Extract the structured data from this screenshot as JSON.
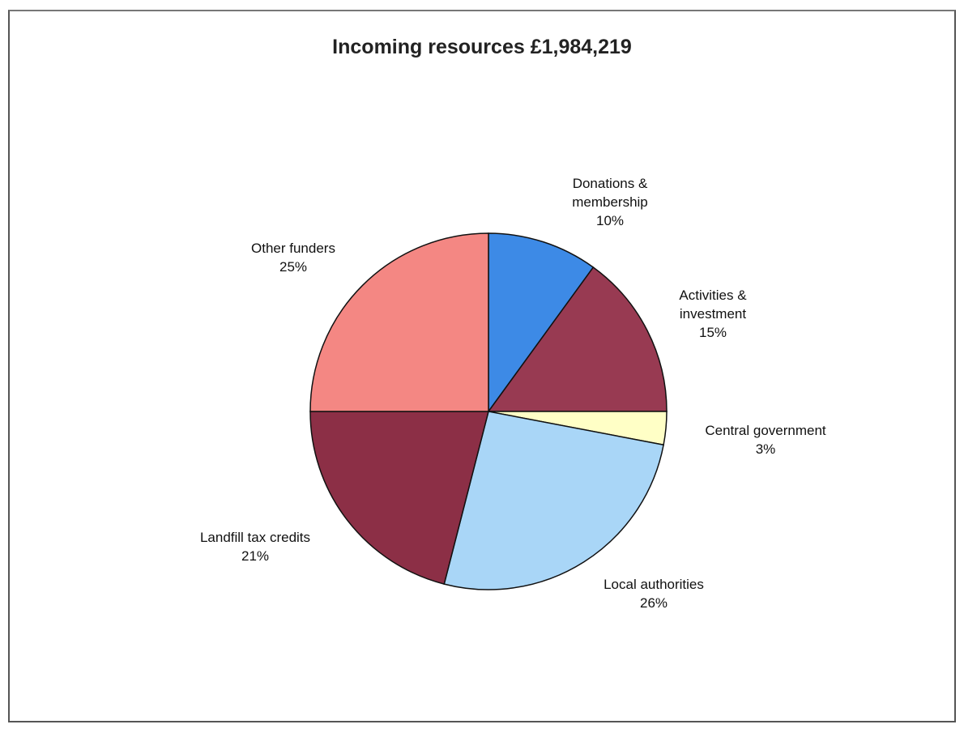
{
  "chart_data": {
    "type": "pie",
    "title": "Incoming resources £1,984,219",
    "start_angle_deg": 0,
    "direction": "clockwise",
    "slices": [
      {
        "label": "Donations &\nmembership",
        "percent_label": "10%",
        "value": 10,
        "color": "#3d8ae6"
      },
      {
        "label": "Activities &\ninvestment",
        "percent_label": "15%",
        "value": 15,
        "color": "#983a52"
      },
      {
        "label": "Central government",
        "percent_label": "3%",
        "value": 3,
        "color": "#ffffc6"
      },
      {
        "label": "Local authorities",
        "percent_label": "26%",
        "value": 26,
        "color": "#a9d6f7"
      },
      {
        "label": "Landfill tax credits",
        "percent_label": "21%",
        "value": 21,
        "color": "#8c2f46"
      },
      {
        "label": "Other funders",
        "percent_label": "25%",
        "value": 25,
        "color": "#f48783"
      }
    ]
  }
}
